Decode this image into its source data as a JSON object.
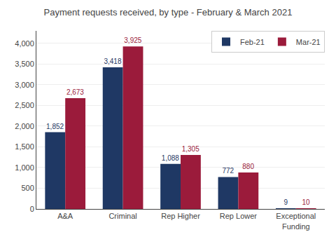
{
  "chart_data": {
    "type": "bar",
    "title": "Payment requests received, by type - February & March 2021",
    "categories": [
      "A&A",
      "Criminal",
      "Rep Higher",
      "Rep Lower",
      "Exceptional\nFunding"
    ],
    "series": [
      {
        "name": "Feb-21",
        "color": "#1F3864",
        "values": [
          1852,
          3418,
          1088,
          772,
          9
        ],
        "value_labels": [
          "1,852",
          "3,418",
          "1,088",
          "772",
          "9"
        ]
      },
      {
        "name": "Mar-21",
        "color": "#9B1B3B",
        "values": [
          2673,
          3925,
          1305,
          880,
          10
        ],
        "value_labels": [
          "2,673",
          "3,925",
          "1,305",
          "880",
          "10"
        ]
      }
    ],
    "ylim": [
      0,
      4300
    ],
    "yticks": [
      0,
      500,
      {
        "value": 1000,
        "label": "1,000"
      },
      {
        "value": 1500,
        "label": "1,500"
      },
      {
        "value": 2000,
        "label": "2,000"
      },
      {
        "value": 2500,
        "label": "2,500"
      },
      {
        "value": 3000,
        "label": "3,000"
      },
      {
        "value": 3500,
        "label": "3,500"
      },
      {
        "value": 4000,
        "label": "4,000"
      }
    ],
    "grid": true,
    "legend": "upper right",
    "data_labels": true
  }
}
